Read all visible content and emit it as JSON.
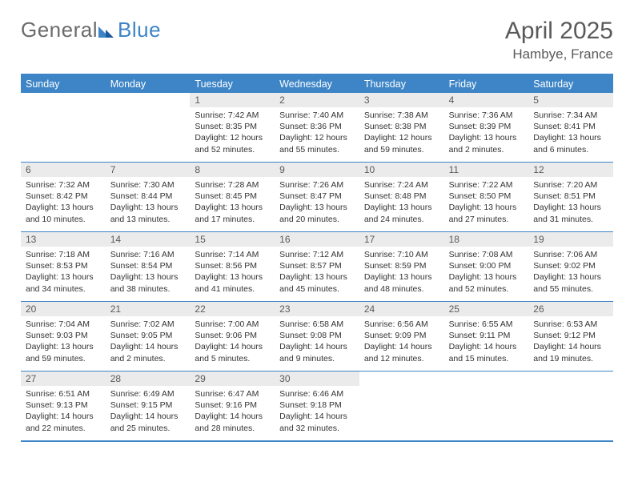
{
  "logo": {
    "part1": "General",
    "part2": "Blue"
  },
  "title": "April 2025",
  "location": "Hambye, France",
  "colors": {
    "header_bg": "#3d85c6",
    "daynum_bg": "#ebebeb",
    "text": "#333333",
    "title_text": "#5a5a5a",
    "border": "#3d85c6",
    "background": "#ffffff"
  },
  "typography": {
    "title_fontsize": 30,
    "location_fontsize": 17,
    "dayheader_fontsize": 12.5,
    "daynum_fontsize": 12,
    "body_fontsize": 10.5
  },
  "layout": {
    "columns": 7,
    "rows": 5,
    "cell_min_height": 86
  },
  "day_names": [
    "Sunday",
    "Monday",
    "Tuesday",
    "Wednesday",
    "Thursday",
    "Friday",
    "Saturday"
  ],
  "weeks": [
    [
      {
        "n": "",
        "sr": "",
        "ss": "",
        "dl": ""
      },
      {
        "n": "",
        "sr": "",
        "ss": "",
        "dl": ""
      },
      {
        "n": "1",
        "sr": "Sunrise: 7:42 AM",
        "ss": "Sunset: 8:35 PM",
        "dl": "Daylight: 12 hours and 52 minutes."
      },
      {
        "n": "2",
        "sr": "Sunrise: 7:40 AM",
        "ss": "Sunset: 8:36 PM",
        "dl": "Daylight: 12 hours and 55 minutes."
      },
      {
        "n": "3",
        "sr": "Sunrise: 7:38 AM",
        "ss": "Sunset: 8:38 PM",
        "dl": "Daylight: 12 hours and 59 minutes."
      },
      {
        "n": "4",
        "sr": "Sunrise: 7:36 AM",
        "ss": "Sunset: 8:39 PM",
        "dl": "Daylight: 13 hours and 2 minutes."
      },
      {
        "n": "5",
        "sr": "Sunrise: 7:34 AM",
        "ss": "Sunset: 8:41 PM",
        "dl": "Daylight: 13 hours and 6 minutes."
      }
    ],
    [
      {
        "n": "6",
        "sr": "Sunrise: 7:32 AM",
        "ss": "Sunset: 8:42 PM",
        "dl": "Daylight: 13 hours and 10 minutes."
      },
      {
        "n": "7",
        "sr": "Sunrise: 7:30 AM",
        "ss": "Sunset: 8:44 PM",
        "dl": "Daylight: 13 hours and 13 minutes."
      },
      {
        "n": "8",
        "sr": "Sunrise: 7:28 AM",
        "ss": "Sunset: 8:45 PM",
        "dl": "Daylight: 13 hours and 17 minutes."
      },
      {
        "n": "9",
        "sr": "Sunrise: 7:26 AM",
        "ss": "Sunset: 8:47 PM",
        "dl": "Daylight: 13 hours and 20 minutes."
      },
      {
        "n": "10",
        "sr": "Sunrise: 7:24 AM",
        "ss": "Sunset: 8:48 PM",
        "dl": "Daylight: 13 hours and 24 minutes."
      },
      {
        "n": "11",
        "sr": "Sunrise: 7:22 AM",
        "ss": "Sunset: 8:50 PM",
        "dl": "Daylight: 13 hours and 27 minutes."
      },
      {
        "n": "12",
        "sr": "Sunrise: 7:20 AM",
        "ss": "Sunset: 8:51 PM",
        "dl": "Daylight: 13 hours and 31 minutes."
      }
    ],
    [
      {
        "n": "13",
        "sr": "Sunrise: 7:18 AM",
        "ss": "Sunset: 8:53 PM",
        "dl": "Daylight: 13 hours and 34 minutes."
      },
      {
        "n": "14",
        "sr": "Sunrise: 7:16 AM",
        "ss": "Sunset: 8:54 PM",
        "dl": "Daylight: 13 hours and 38 minutes."
      },
      {
        "n": "15",
        "sr": "Sunrise: 7:14 AM",
        "ss": "Sunset: 8:56 PM",
        "dl": "Daylight: 13 hours and 41 minutes."
      },
      {
        "n": "16",
        "sr": "Sunrise: 7:12 AM",
        "ss": "Sunset: 8:57 PM",
        "dl": "Daylight: 13 hours and 45 minutes."
      },
      {
        "n": "17",
        "sr": "Sunrise: 7:10 AM",
        "ss": "Sunset: 8:59 PM",
        "dl": "Daylight: 13 hours and 48 minutes."
      },
      {
        "n": "18",
        "sr": "Sunrise: 7:08 AM",
        "ss": "Sunset: 9:00 PM",
        "dl": "Daylight: 13 hours and 52 minutes."
      },
      {
        "n": "19",
        "sr": "Sunrise: 7:06 AM",
        "ss": "Sunset: 9:02 PM",
        "dl": "Daylight: 13 hours and 55 minutes."
      }
    ],
    [
      {
        "n": "20",
        "sr": "Sunrise: 7:04 AM",
        "ss": "Sunset: 9:03 PM",
        "dl": "Daylight: 13 hours and 59 minutes."
      },
      {
        "n": "21",
        "sr": "Sunrise: 7:02 AM",
        "ss": "Sunset: 9:05 PM",
        "dl": "Daylight: 14 hours and 2 minutes."
      },
      {
        "n": "22",
        "sr": "Sunrise: 7:00 AM",
        "ss": "Sunset: 9:06 PM",
        "dl": "Daylight: 14 hours and 5 minutes."
      },
      {
        "n": "23",
        "sr": "Sunrise: 6:58 AM",
        "ss": "Sunset: 9:08 PM",
        "dl": "Daylight: 14 hours and 9 minutes."
      },
      {
        "n": "24",
        "sr": "Sunrise: 6:56 AM",
        "ss": "Sunset: 9:09 PM",
        "dl": "Daylight: 14 hours and 12 minutes."
      },
      {
        "n": "25",
        "sr": "Sunrise: 6:55 AM",
        "ss": "Sunset: 9:11 PM",
        "dl": "Daylight: 14 hours and 15 minutes."
      },
      {
        "n": "26",
        "sr": "Sunrise: 6:53 AM",
        "ss": "Sunset: 9:12 PM",
        "dl": "Daylight: 14 hours and 19 minutes."
      }
    ],
    [
      {
        "n": "27",
        "sr": "Sunrise: 6:51 AM",
        "ss": "Sunset: 9:13 PM",
        "dl": "Daylight: 14 hours and 22 minutes."
      },
      {
        "n": "28",
        "sr": "Sunrise: 6:49 AM",
        "ss": "Sunset: 9:15 PM",
        "dl": "Daylight: 14 hours and 25 minutes."
      },
      {
        "n": "29",
        "sr": "Sunrise: 6:47 AM",
        "ss": "Sunset: 9:16 PM",
        "dl": "Daylight: 14 hours and 28 minutes."
      },
      {
        "n": "30",
        "sr": "Sunrise: 6:46 AM",
        "ss": "Sunset: 9:18 PM",
        "dl": "Daylight: 14 hours and 32 minutes."
      },
      {
        "n": "",
        "sr": "",
        "ss": "",
        "dl": ""
      },
      {
        "n": "",
        "sr": "",
        "ss": "",
        "dl": ""
      },
      {
        "n": "",
        "sr": "",
        "ss": "",
        "dl": ""
      }
    ]
  ]
}
